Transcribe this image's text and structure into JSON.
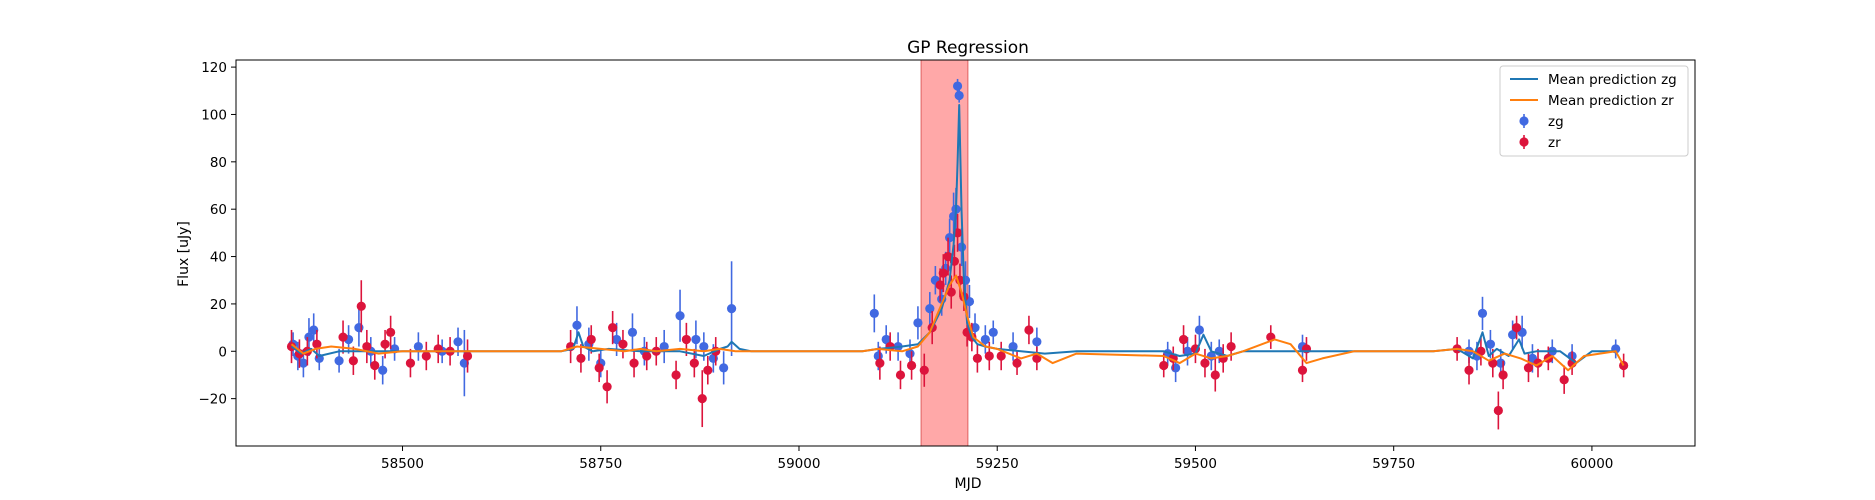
{
  "chart_data": {
    "type": "scatter",
    "title": "GP Regression",
    "xlabel": "MJD",
    "ylabel": "Flux [uJy]",
    "xlim": [
      58290,
      60130
    ],
    "ylim": [
      -40,
      123
    ],
    "xticks": [
      58500,
      58750,
      59000,
      59250,
      59500,
      59750,
      60000
    ],
    "yticks": [
      -20,
      0,
      20,
      40,
      60,
      80,
      100,
      120
    ],
    "grid": false,
    "legend": {
      "placement": "top-right",
      "entries": [
        "Mean prediction zg",
        "Mean prediction zr",
        "zg",
        "zr"
      ]
    },
    "highlight_region": {
      "x": [
        59154,
        59213
      ],
      "color": "#ff9999"
    },
    "colors": {
      "zg_line": "#1f77b4",
      "zr_line": "#ff7f0e",
      "zg_points": "#4169e1",
      "zr_points": "#dc143c"
    },
    "series": [
      {
        "name": "Mean prediction zg",
        "kind": "line",
        "x": [
          58360,
          58372,
          58385,
          58395,
          58420,
          58460,
          58500,
          58580,
          58600,
          58700,
          58715,
          58722,
          58728,
          58740,
          58760,
          58800,
          58850,
          58880,
          58900,
          58910,
          58915,
          58925,
          58940,
          59000,
          59080,
          59100,
          59130,
          59150,
          59165,
          59180,
          59190,
          59195,
          59198,
          59200,
          59202,
          59205,
          59208,
          59212,
          59218,
          59225,
          59235,
          59250,
          59280,
          59310,
          59350,
          59460,
          59480,
          59500,
          59510,
          59520,
          59540,
          59560,
          59600,
          59640,
          59700,
          59800,
          59830,
          59850,
          59862,
          59870,
          59880,
          59895,
          59908,
          59915,
          59930,
          59960,
          59980,
          60000,
          60030
        ],
        "y": [
          2,
          -1,
          1,
          -2,
          0,
          0,
          0,
          0,
          0,
          0,
          1,
          8,
          2,
          0,
          1,
          0,
          0,
          -2,
          1,
          2,
          4,
          1,
          0,
          0,
          0,
          1,
          2,
          3,
          8,
          18,
          30,
          45,
          60,
          80,
          104,
          60,
          30,
          12,
          6,
          3,
          2,
          1,
          0,
          -1,
          0,
          0,
          -2,
          -1,
          7,
          0,
          -2,
          0,
          0,
          0,
          0,
          0,
          1,
          -3,
          8,
          -2,
          1,
          -2,
          5,
          -1,
          0,
          0,
          -5,
          0,
          0
        ]
      },
      {
        "name": "Mean prediction zr",
        "kind": "line",
        "x": [
          58360,
          58375,
          58390,
          58410,
          58440,
          58470,
          58500,
          58580,
          58600,
          58700,
          58720,
          58750,
          58780,
          58800,
          58820,
          58850,
          58880,
          58900,
          58920,
          58950,
          59000,
          59080,
          59100,
          59130,
          59150,
          59165,
          59180,
          59190,
          59198,
          59205,
          59212,
          59220,
          59235,
          59250,
          59280,
          59300,
          59320,
          59350,
          59460,
          59480,
          59500,
          59520,
          59540,
          59560,
          59600,
          59620,
          59640,
          59660,
          59700,
          59800,
          59830,
          59850,
          59870,
          59890,
          59910,
          59930,
          59950,
          59970,
          59990,
          60010,
          60030,
          60040
        ],
        "y": [
          3,
          -1,
          1,
          2,
          1,
          -1,
          0,
          0,
          0,
          0,
          2,
          1,
          0,
          1,
          0,
          1,
          0,
          1,
          0,
          0,
          0,
          0,
          1,
          0,
          2,
          8,
          20,
          28,
          32,
          25,
          15,
          6,
          2,
          1,
          -3,
          -1,
          -5,
          -1,
          -2,
          -5,
          -1,
          -3,
          -2,
          0,
          5,
          3,
          -5,
          -3,
          0,
          0,
          1,
          0,
          -4,
          -1,
          -3,
          -6,
          -2,
          -8,
          -2,
          -1,
          0,
          -6
        ]
      },
      {
        "name": "zg",
        "kind": "errorbar",
        "x": [
          58362,
          58368,
          58375,
          58382,
          58388,
          58395,
          58420,
          58432,
          58445,
          58460,
          58475,
          58490,
          58520,
          58550,
          58570,
          58578,
          58720,
          58735,
          58750,
          58770,
          58790,
          58805,
          58830,
          58850,
          58870,
          58880,
          58892,
          58905,
          58915,
          59095,
          59100,
          59110,
          59125,
          59140,
          59150,
          59165,
          59172,
          59180,
          59185,
          59190,
          59195,
          59198,
          59200,
          59202,
          59205,
          59210,
          59215,
          59222,
          59235,
          59245,
          59270,
          59300,
          59465,
          59475,
          59490,
          59505,
          59520,
          59530,
          59635,
          59845,
          59855,
          59862,
          59872,
          59885,
          59900,
          59912,
          59925,
          59950,
          59975,
          60030
        ],
        "y": [
          3,
          -2,
          -5,
          6,
          9,
          -3,
          -4,
          5,
          10,
          0,
          -8,
          1,
          2,
          0,
          4,
          -5,
          11,
          3,
          -5,
          5,
          8,
          0,
          2,
          15,
          5,
          2,
          -3,
          -7,
          18,
          16,
          -2,
          5,
          2,
          -1,
          12,
          18,
          30,
          22,
          35,
          48,
          57,
          60,
          112,
          108,
          44,
          30,
          21,
          10,
          5,
          8,
          2,
          4,
          -1,
          -7,
          0,
          9,
          -2,
          0,
          2,
          0,
          -2,
          16,
          3,
          -5,
          7,
          8,
          -3,
          0,
          -2,
          1
        ],
        "yerr": [
          5,
          6,
          6,
          8,
          7,
          5,
          5,
          6,
          8,
          6,
          6,
          5,
          6,
          5,
          6,
          14,
          8,
          7,
          6,
          7,
          8,
          6,
          7,
          11,
          8,
          6,
          6,
          7,
          20,
          8,
          6,
          6,
          6,
          6,
          7,
          7,
          6,
          7,
          7,
          8,
          10,
          9,
          3,
          3,
          8,
          8,
          7,
          6,
          6,
          5,
          6,
          6,
          5,
          6,
          6,
          6,
          6,
          5,
          5,
          5,
          6,
          7,
          6,
          6,
          6,
          7,
          6,
          5,
          5,
          4
        ]
      },
      {
        "name": "zr",
        "kind": "errorbar",
        "x": [
          58360,
          58370,
          58380,
          58392,
          58425,
          58438,
          58448,
          58455,
          58465,
          58478,
          58485,
          58510,
          58530,
          58545,
          58560,
          58582,
          58712,
          58725,
          58738,
          58748,
          58758,
          58765,
          58778,
          58792,
          58808,
          58820,
          58845,
          58858,
          58868,
          58878,
          58885,
          58895,
          59102,
          59115,
          59128,
          59142,
          59158,
          59168,
          59178,
          59182,
          59188,
          59192,
          59196,
          59200,
          59203,
          59208,
          59212,
          59218,
          59225,
          59240,
          59255,
          59275,
          59290,
          59300,
          59460,
          59472,
          59485,
          59500,
          59512,
          59525,
          59535,
          59545,
          59595,
          59635,
          59640,
          59830,
          59845,
          59860,
          59875,
          59882,
          59888,
          59905,
          59920,
          59932,
          59945,
          59965,
          59975,
          60040
        ],
        "y": [
          2,
          -1,
          0,
          3,
          6,
          -4,
          19,
          2,
          -6,
          3,
          8,
          -5,
          -2,
          1,
          0,
          -2,
          2,
          -3,
          5,
          -7,
          -15,
          10,
          3,
          -5,
          -2,
          0,
          -10,
          5,
          -5,
          -20,
          -8,
          0,
          -5,
          2,
          -10,
          -6,
          -8,
          10,
          28,
          33,
          40,
          25,
          38,
          50,
          30,
          23,
          8,
          6,
          -3,
          -2,
          -2,
          -5,
          9,
          -3,
          -6,
          -3,
          5,
          1,
          -5,
          -10,
          -3,
          2,
          6,
          -8,
          1,
          1,
          -8,
          0,
          -5,
          -25,
          -10,
          10,
          -7,
          -5,
          -3,
          -12,
          -5,
          -6
        ],
        "yerr": [
          7,
          6,
          6,
          6,
          7,
          6,
          11,
          7,
          6,
          6,
          7,
          6,
          6,
          6,
          6,
          7,
          7,
          6,
          6,
          6,
          7,
          7,
          6,
          6,
          6,
          6,
          6,
          7,
          6,
          12,
          6,
          6,
          7,
          6,
          6,
          6,
          7,
          7,
          7,
          8,
          8,
          7,
          7,
          8,
          7,
          6,
          6,
          6,
          6,
          6,
          6,
          5,
          6,
          5,
          5,
          5,
          6,
          6,
          6,
          7,
          6,
          6,
          5,
          5,
          5,
          5,
          6,
          6,
          6,
          8,
          6,
          5,
          6,
          6,
          5,
          6,
          5,
          5
        ]
      }
    ]
  }
}
